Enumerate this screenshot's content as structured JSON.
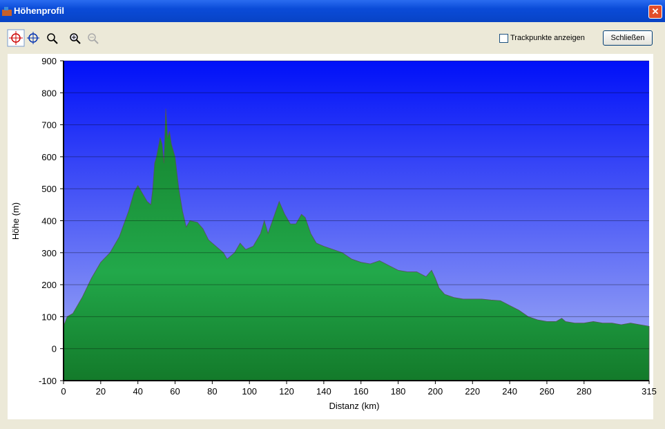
{
  "window": {
    "title": "Höhenprofil"
  },
  "toolbar": {
    "checkbox_label": "Trackpunkte anzeigen",
    "close_button": "Schließen"
  },
  "chart_data": {
    "type": "area",
    "x_label": "Distanz   (km)",
    "y_label": "Höhe (m)",
    "x": [
      0,
      2,
      5,
      10,
      15,
      20,
      25,
      30,
      35,
      38,
      40,
      42,
      45,
      47,
      48,
      49,
      50,
      52,
      53,
      54,
      55,
      56,
      57,
      58,
      60,
      62,
      64,
      66,
      68,
      72,
      75,
      78,
      82,
      86,
      88,
      92,
      95,
      98,
      102,
      106,
      108,
      110,
      113,
      116,
      119,
      122,
      125,
      128,
      130,
      133,
      136,
      140,
      145,
      150,
      155,
      160,
      165,
      170,
      175,
      180,
      185,
      190,
      195,
      198,
      200,
      202,
      205,
      210,
      215,
      220,
      225,
      230,
      235,
      240,
      245,
      250,
      255,
      260,
      265,
      268,
      270,
      275,
      280,
      285,
      290,
      295,
      300,
      305,
      310,
      315
    ],
    "series": [
      {
        "name": "Höhe",
        "color": "#1f9e45",
        "values": [
          70,
          100,
          110,
          160,
          220,
          270,
          300,
          350,
          430,
          490,
          510,
          490,
          460,
          450,
          500,
          580,
          600,
          660,
          640,
          580,
          750,
          660,
          680,
          640,
          600,
          500,
          430,
          380,
          400,
          395,
          375,
          340,
          320,
          300,
          280,
          300,
          330,
          310,
          320,
          360,
          400,
          360,
          410,
          460,
          420,
          390,
          390,
          420,
          410,
          360,
          330,
          320,
          310,
          300,
          280,
          270,
          265,
          275,
          260,
          245,
          240,
          240,
          225,
          245,
          220,
          190,
          170,
          160,
          155,
          155,
          155,
          152,
          150,
          135,
          120,
          100,
          90,
          85,
          85,
          95,
          85,
          80,
          80,
          85,
          80,
          80,
          75,
          80,
          75,
          70
        ]
      }
    ],
    "xlim": [
      0,
      315
    ],
    "ylim": [
      -100,
      900
    ],
    "xticks": [
      0,
      20,
      40,
      60,
      80,
      100,
      120,
      140,
      160,
      180,
      200,
      220,
      240,
      260,
      280,
      315
    ],
    "yticks": [
      -100,
      0,
      100,
      200,
      300,
      400,
      500,
      600,
      700,
      800,
      900
    ],
    "grid": true
  }
}
